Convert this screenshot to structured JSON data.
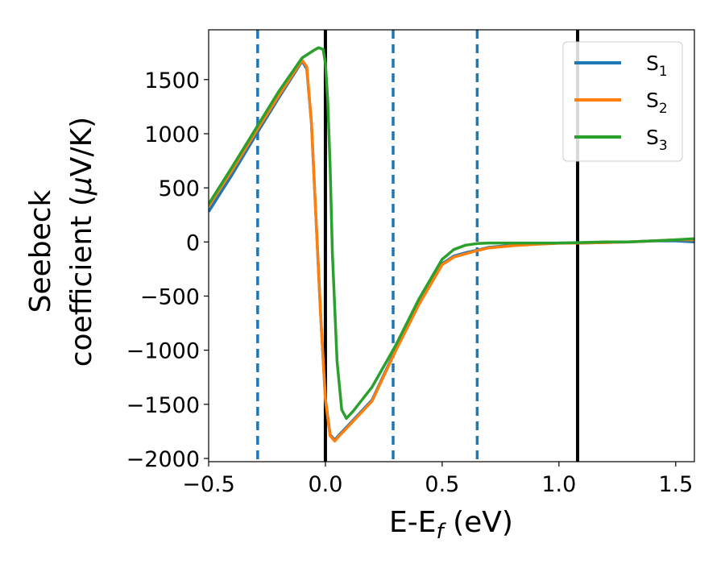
{
  "chart_data": {
    "type": "line",
    "xlabel_main": "E-E",
    "xlabel_sub": "f",
    "xlabel_unit": " (eV)",
    "ylabel_line1": "Seebeck",
    "ylabel_line2_text": "coefficient  (",
    "ylabel_line2_mu": "μ",
    "ylabel_line2_unit": "V/K)",
    "xlim": [
      -0.5,
      1.58
    ],
    "ylim": [
      -2030,
      1960
    ],
    "xticks": [
      -0.5,
      0.0,
      0.5,
      1.0,
      1.5
    ],
    "xtick_labels": [
      "−0.5",
      "0.0",
      "0.5",
      "1.0",
      "1.5"
    ],
    "yticks": [
      -2000,
      -1500,
      -1000,
      -500,
      0,
      500,
      1000,
      1500
    ],
    "ytick_labels": [
      "−2000",
      "−1500",
      "−1000",
      "−500",
      "0",
      "500",
      "1000",
      "1500"
    ],
    "grid": false,
    "legend_position": "top-right",
    "vlines_solid": [
      0.0,
      1.08
    ],
    "vlines_dashed": [
      -0.29,
      0.29,
      0.65
    ],
    "series": [
      {
        "name": "S",
        "subscript": "1",
        "color": "#1f77b4",
        "x": [
          -0.5,
          -0.4,
          -0.3,
          -0.2,
          -0.1,
          -0.08,
          -0.06,
          -0.04,
          -0.02,
          0.0,
          0.02,
          0.04,
          0.06,
          0.1,
          0.2,
          0.3,
          0.4,
          0.5,
          0.55,
          0.6,
          0.65,
          0.7,
          0.8,
          0.9,
          1.0,
          1.1,
          1.2,
          1.3,
          1.4,
          1.5,
          1.58
        ],
        "y": [
          280,
          620,
          980,
          1330,
          1670,
          1600,
          1100,
          200,
          -700,
          -1450,
          -1780,
          -1830,
          -1780,
          -1690,
          -1460,
          -1000,
          -570,
          -200,
          -130,
          -100,
          -75,
          -50,
          -30,
          -20,
          -10,
          -10,
          -5,
          0,
          10,
          10,
          0
        ]
      },
      {
        "name": "S",
        "subscript": "2",
        "color": "#ff7f0e",
        "x": [
          -0.5,
          -0.4,
          -0.3,
          -0.2,
          -0.1,
          -0.08,
          -0.06,
          -0.04,
          -0.02,
          0.0,
          0.02,
          0.04,
          0.06,
          0.1,
          0.2,
          0.3,
          0.4,
          0.5,
          0.55,
          0.6,
          0.65,
          0.7,
          0.8,
          0.9,
          1.0,
          1.1,
          1.2,
          1.3,
          1.4,
          1.5,
          1.58
        ],
        "y": [
          330,
          660,
          1010,
          1350,
          1680,
          1620,
          1100,
          200,
          -700,
          -1460,
          -1790,
          -1840,
          -1790,
          -1700,
          -1470,
          -1010,
          -580,
          -210,
          -140,
          -110,
          -80,
          -55,
          -35,
          -22,
          -12,
          -10,
          -5,
          0,
          10,
          20,
          20
        ]
      },
      {
        "name": "S",
        "subscript": "3",
        "color": "#2ca02c",
        "x": [
          -0.5,
          -0.4,
          -0.3,
          -0.2,
          -0.1,
          -0.05,
          -0.03,
          -0.01,
          0.0,
          0.01,
          0.02,
          0.03,
          0.05,
          0.07,
          0.09,
          0.12,
          0.2,
          0.3,
          0.4,
          0.5,
          0.55,
          0.6,
          0.65,
          0.7,
          0.8,
          0.9,
          1.0,
          1.1,
          1.2,
          1.3,
          1.4,
          1.5,
          1.58
        ],
        "y": [
          350,
          690,
          1040,
          1390,
          1700,
          1770,
          1795,
          1780,
          1650,
          1300,
          700,
          -100,
          -1100,
          -1550,
          -1630,
          -1560,
          -1340,
          -960,
          -530,
          -160,
          -70,
          -30,
          -15,
          -10,
          -10,
          -10,
          -10,
          -5,
          0,
          0,
          10,
          20,
          30
        ]
      }
    ]
  }
}
